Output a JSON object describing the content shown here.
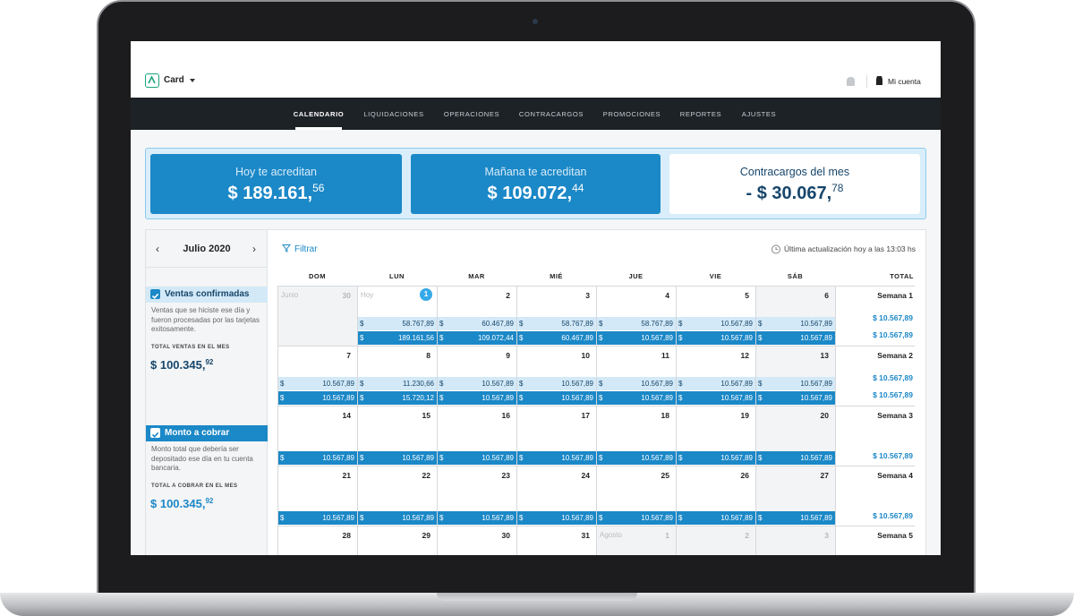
{
  "header": {
    "brand": "Card",
    "account": "Mi cuenta"
  },
  "nav": [
    "CALENDARIO",
    "LIQUIDACIONES",
    "OPERACIONES",
    "CONTRACARGOS",
    "PROMOCIONES",
    "REPORTES",
    "AJUSTES"
  ],
  "summary": [
    {
      "label": "Hoy te acreditan",
      "amount": "$ 189.161,",
      "cents": "56"
    },
    {
      "label": "Mañana te acreditan",
      "amount": "$ 109.072,",
      "cents": "44"
    },
    {
      "label": "Contracargos del mes",
      "amount": "- $ 30.067,",
      "cents": "78"
    }
  ],
  "sidebar": {
    "month": "Julio 2020",
    "legend": [
      {
        "title": "Ventas confirmadas",
        "description": "Ventas que se hiciste ese día y fueron procesadas por las tarjetas exitosamente.",
        "total_label": "TOTAL VENTAS EN EL MES",
        "total": "$ 100.345,",
        "cents": "92"
      },
      {
        "title": "Monto a cobrar",
        "description": "Monto total que debería ser depositado ese día en tu cuenta bancaria.",
        "total_label": "TOTAL A COBRAR EN EL MES",
        "total": "$ 100.345,",
        "cents": "92"
      }
    ]
  },
  "toolbar": {
    "filter": "Filtrar",
    "updated": "Última actualización hoy a las 13:03 hs"
  },
  "calendar": {
    "currency": "$",
    "headers": [
      "DOM",
      "LUN",
      "MAR",
      "MIÉ",
      "JUE",
      "VIE",
      "SÁB",
      "TOTAL"
    ],
    "weeks": [
      {
        "label": "Semana 1",
        "days": [
          {
            "day": "30",
            "month": "Junio",
            "muted": true
          },
          {
            "day": "1",
            "note": "Hoy",
            "sales": "58.767,89",
            "payout": "189.161,56"
          },
          {
            "day": "2",
            "sales": "60.467,89",
            "payout": "109.072,44"
          },
          {
            "day": "3",
            "sales": "58.767,89",
            "payout": "60.467,89"
          },
          {
            "day": "4",
            "sales": "58.767,89",
            "payout": "10.567,89"
          },
          {
            "day": "5",
            "sales": "10.567,89",
            "payout": "10.567,89"
          },
          {
            "day": "6",
            "sales": "10.567,89",
            "payout": "10.567,89"
          }
        ],
        "totals": {
          "sales": "$ 10.567,89",
          "payout": "$ 10.567,89"
        }
      },
      {
        "label": "Semana 2",
        "days": [
          {
            "day": "7",
            "sales": "10.567,89",
            "payout": "10.567,89"
          },
          {
            "day": "8",
            "sales": "11.230,66",
            "payout": "15.720,12"
          },
          {
            "day": "9",
            "sales": "10.567,89",
            "payout": "10.567,89"
          },
          {
            "day": "10",
            "sales": "10.567,89",
            "payout": "10.567,89"
          },
          {
            "day": "11",
            "sales": "10.567,89",
            "payout": "10.567,89"
          },
          {
            "day": "12",
            "sales": "10.567,89",
            "payout": "10.567,89"
          },
          {
            "day": "13",
            "sales": "10.567,89",
            "payout": "10.567,89"
          }
        ],
        "totals": {
          "sales": "$ 10.567,89",
          "payout": "$ 10.567,89"
        }
      },
      {
        "label": "Semana 3",
        "days": [
          {
            "day": "14",
            "payout": "10.567,89"
          },
          {
            "day": "15",
            "payout": "10.567,89"
          },
          {
            "day": "16",
            "payout": "10.567,89"
          },
          {
            "day": "17",
            "payout": "10.567,89"
          },
          {
            "day": "18",
            "payout": "10.567,89"
          },
          {
            "day": "19",
            "payout": "10.567,89"
          },
          {
            "day": "20",
            "payout": "10.567,89"
          }
        ],
        "totals": {
          "payout": "$ 10.567,89"
        }
      },
      {
        "label": "Semana 4",
        "days": [
          {
            "day": "21",
            "payout": "10.567,89"
          },
          {
            "day": "22",
            "payout": "10.567,89"
          },
          {
            "day": "23",
            "payout": "10.567,89"
          },
          {
            "day": "24",
            "payout": "10.567,89"
          },
          {
            "day": "25",
            "payout": "10.567,89"
          },
          {
            "day": "26",
            "payout": "10.567,89"
          },
          {
            "day": "27",
            "payout": "10.567,89"
          }
        ],
        "totals": {
          "payout": "$ 10.567,89"
        }
      },
      {
        "label": "Semana 5",
        "days": [
          {
            "day": "28"
          },
          {
            "day": "29"
          },
          {
            "day": "30"
          },
          {
            "day": "31"
          },
          {
            "day": "1",
            "month": "Agosto",
            "muted": true
          },
          {
            "day": "2",
            "muted": true
          },
          {
            "day": "3",
            "muted": true
          }
        ],
        "totals": {}
      }
    ]
  }
}
